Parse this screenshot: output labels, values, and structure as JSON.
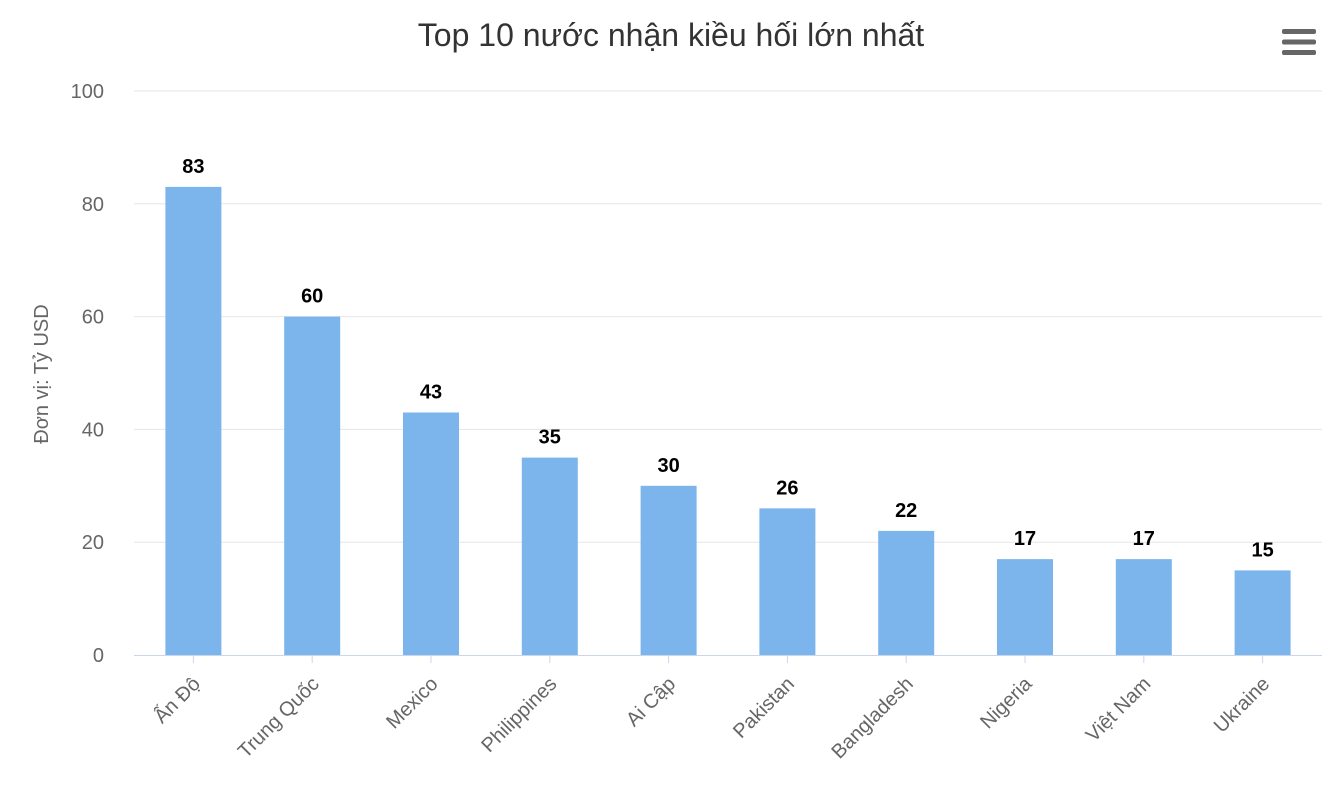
{
  "chart_data": {
    "type": "bar",
    "title": "Top 10 nước nhận kiều hối lớn nhất",
    "xlabel": "",
    "ylabel": "Đơn vị: Tỷ USD",
    "categories": [
      "Ấn Độ",
      "Trung Quốc",
      "Mexico",
      "Philippines",
      "Ai Cập",
      "Pakistan",
      "Bangladesh",
      "Nigeria",
      "Việt Nam",
      "Ukraine"
    ],
    "values": [
      83,
      60,
      43,
      35,
      30,
      26,
      22,
      17,
      17,
      15
    ],
    "ylim": [
      0,
      100
    ],
    "yticks": [
      0,
      20,
      40,
      60,
      80,
      100
    ],
    "grid": true,
    "legend": "none",
    "colors": {
      "bar": "#7cb5ec",
      "grid": "#e6e6e6",
      "axis": "#ccd6eb",
      "menu": "#666666"
    }
  },
  "icons": {
    "menu": "hamburger-menu-icon"
  }
}
